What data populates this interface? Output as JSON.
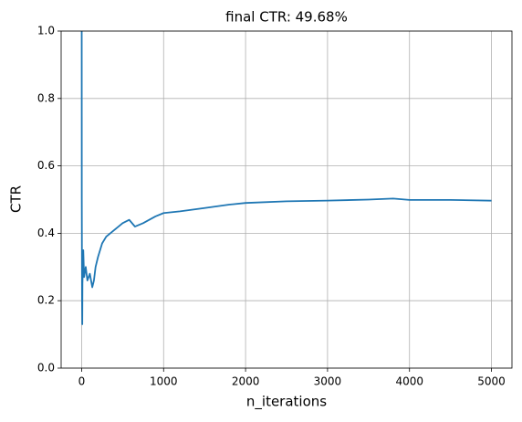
{
  "chart_data": {
    "type": "line",
    "title": "final CTR: 49.68%",
    "xlabel": "n_iterations",
    "ylabel": "CTR",
    "x": [
      1,
      2,
      5,
      8,
      10,
      20,
      30,
      50,
      70,
      100,
      130,
      150,
      170,
      200,
      250,
      300,
      400,
      500,
      580,
      650,
      750,
      900,
      1000,
      1200,
      1500,
      1800,
      2000,
      2500,
      3000,
      3500,
      3800,
      4000,
      4500,
      5000
    ],
    "values": [
      1.0,
      0.5,
      0.2,
      0.13,
      0.25,
      0.35,
      0.27,
      0.3,
      0.26,
      0.28,
      0.24,
      0.26,
      0.3,
      0.33,
      0.37,
      0.39,
      0.41,
      0.43,
      0.44,
      0.42,
      0.43,
      0.45,
      0.46,
      0.465,
      0.475,
      0.485,
      0.49,
      0.495,
      0.497,
      0.5,
      0.503,
      0.499,
      0.499,
      0.4968
    ],
    "color": "#1f77b4",
    "xlim": [
      -250,
      5250
    ],
    "xticks": [
      0,
      1000,
      2000,
      3000,
      4000,
      5000
    ],
    "ylim": [
      0,
      1
    ],
    "yticks": [
      {
        "value": 0,
        "label": "0.0"
      },
      0.2,
      0.4,
      0.6,
      0.8,
      {
        "value": 1,
        "label": "1.0"
      }
    ],
    "grid": true
  }
}
